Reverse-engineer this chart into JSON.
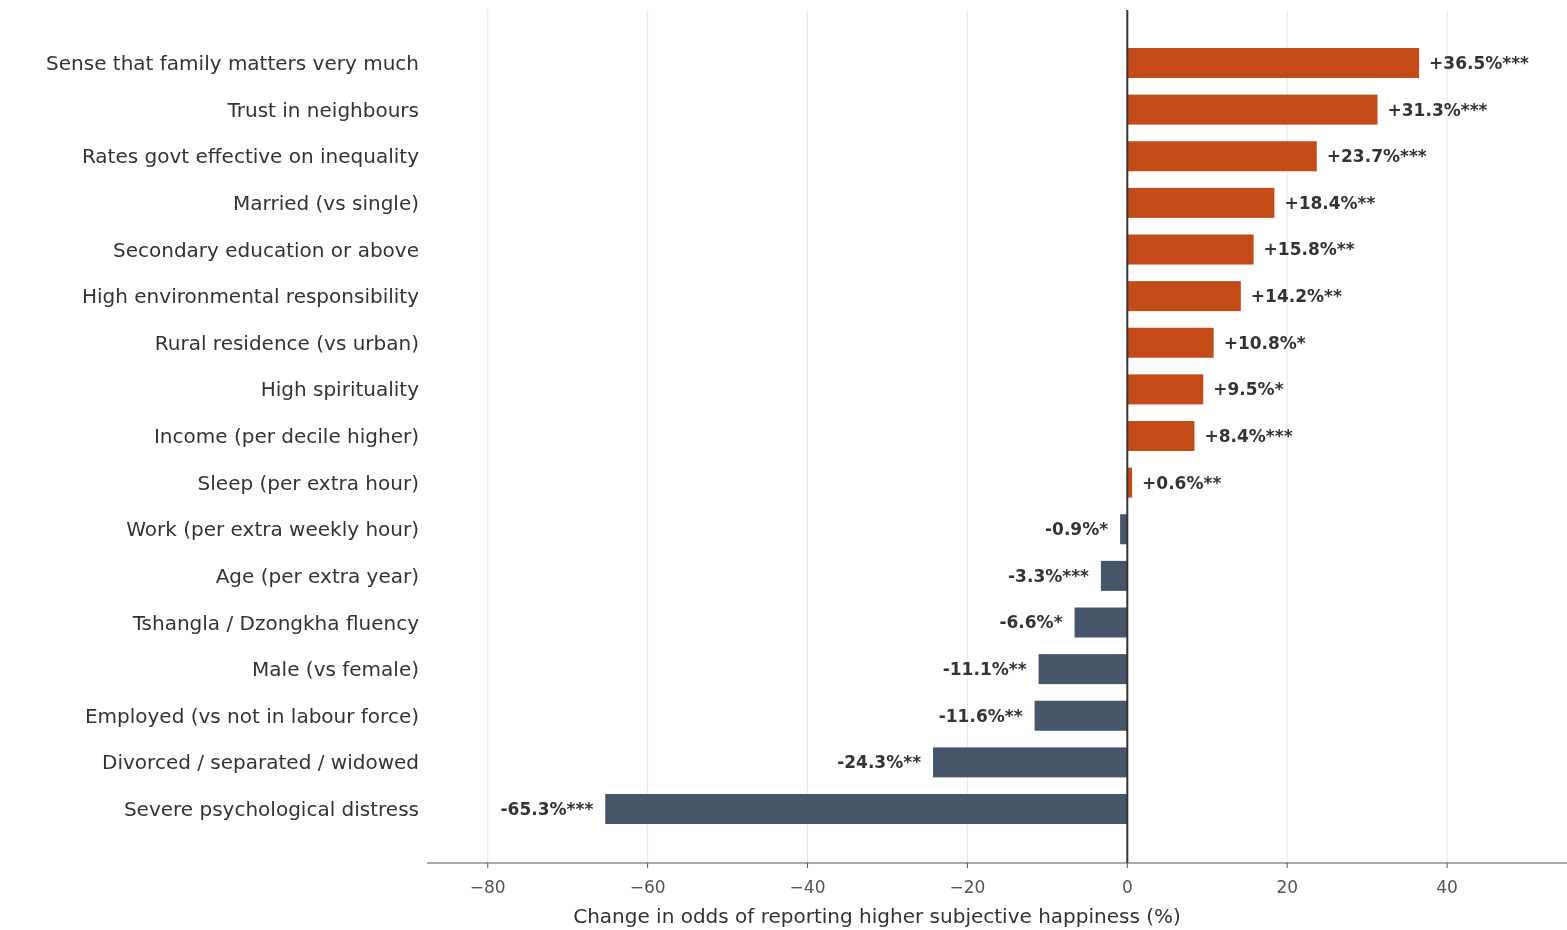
{
  "chart_data": {
    "type": "bar",
    "orientation": "horizontal",
    "xlabel": "Change in odds of reporting higher subjective happiness (%)",
    "categories": [
      "Sense that family matters very much",
      "Trust in neighbours",
      "Rates govt effective on inequality",
      "Married  (vs single)",
      "Secondary education or above",
      "High environmental responsibility",
      "Rural residence  (vs urban)",
      "High spirituality",
      "Income  (per decile higher)",
      "Sleep  (per extra hour)",
      "Work  (per extra weekly hour)",
      "Age  (per extra year)",
      "Tshangla / Dzongkha fluency",
      "Male  (vs female)",
      "Employed  (vs not in labour force)",
      "Divorced / separated / widowed",
      "Severe psychological distress"
    ],
    "values": [
      36.5,
      31.3,
      23.7,
      18.4,
      15.8,
      14.2,
      10.8,
      9.5,
      8.4,
      0.6,
      -0.9,
      -3.3,
      -6.6,
      -11.1,
      -11.6,
      -24.3,
      -65.3
    ],
    "value_labels": [
      "+36.5%***",
      "+31.3%***",
      "+23.7%***",
      "+18.4%**",
      "+15.8%**",
      "+14.2%**",
      "+10.8%*",
      "+9.5%*",
      "+8.4%***",
      "+0.6%**",
      "-0.9%*",
      "-3.3%***",
      "-6.6%*",
      "-11.1%**",
      "-11.6%**",
      "-24.3%**",
      "-65.3%***"
    ],
    "colors": [
      "#c44a17",
      "#c44a17",
      "#c44a17",
      "#c44a17",
      "#c44a17",
      "#c44a17",
      "#c44a17",
      "#c44a17",
      "#c44a17",
      "#c44a17",
      "#465569",
      "#465569",
      "#465569",
      "#465569",
      "#465569",
      "#465569",
      "#465569"
    ],
    "xlim": [
      -87.6,
      55
    ],
    "xticks": [
      {
        "value": -80,
        "label": "−80"
      },
      {
        "value": -60,
        "label": "−60"
      },
      {
        "value": -40,
        "label": "−40"
      },
      {
        "value": -20,
        "label": "−20"
      },
      {
        "value": 0,
        "label": "0"
      },
      {
        "value": 20,
        "label": "20"
      },
      {
        "value": 40,
        "label": "40"
      }
    ],
    "grid": "x",
    "ref_lines": [
      {
        "axis": "x",
        "value": 0,
        "color": "#333333"
      }
    ]
  }
}
